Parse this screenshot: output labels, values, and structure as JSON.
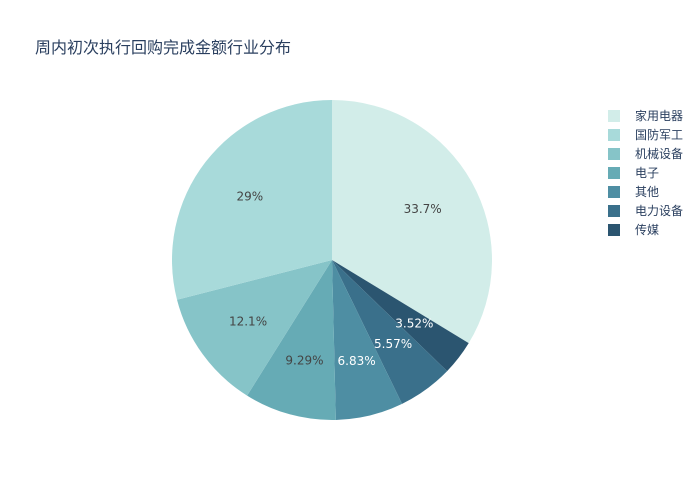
{
  "chart_data": {
    "type": "pie",
    "title": "周内初次执行回购完成金额行业分布",
    "categories": [
      "家用电器",
      "国防军工",
      "机械设备",
      "电子",
      "其他",
      "电力设备",
      "传媒"
    ],
    "values": [
      33.7,
      29.0,
      12.1,
      9.29,
      6.83,
      5.57,
      3.52
    ],
    "labels": [
      "33.7%",
      "29%",
      "12.1%",
      "9.29%",
      "6.83%",
      "5.57%",
      "3.52%"
    ],
    "colors": [
      "#d2ede9",
      "#a8dada",
      "#86c4c8",
      "#66abb5",
      "#4e8ea3",
      "#3a708b",
      "#2b5570"
    ],
    "label_colors": [
      "#444444",
      "#444444",
      "#444444",
      "#444444",
      "#ffffff",
      "#ffffff",
      "#ffffff"
    ],
    "direction": "clockwise",
    "start": "top",
    "legend_position": "right"
  }
}
